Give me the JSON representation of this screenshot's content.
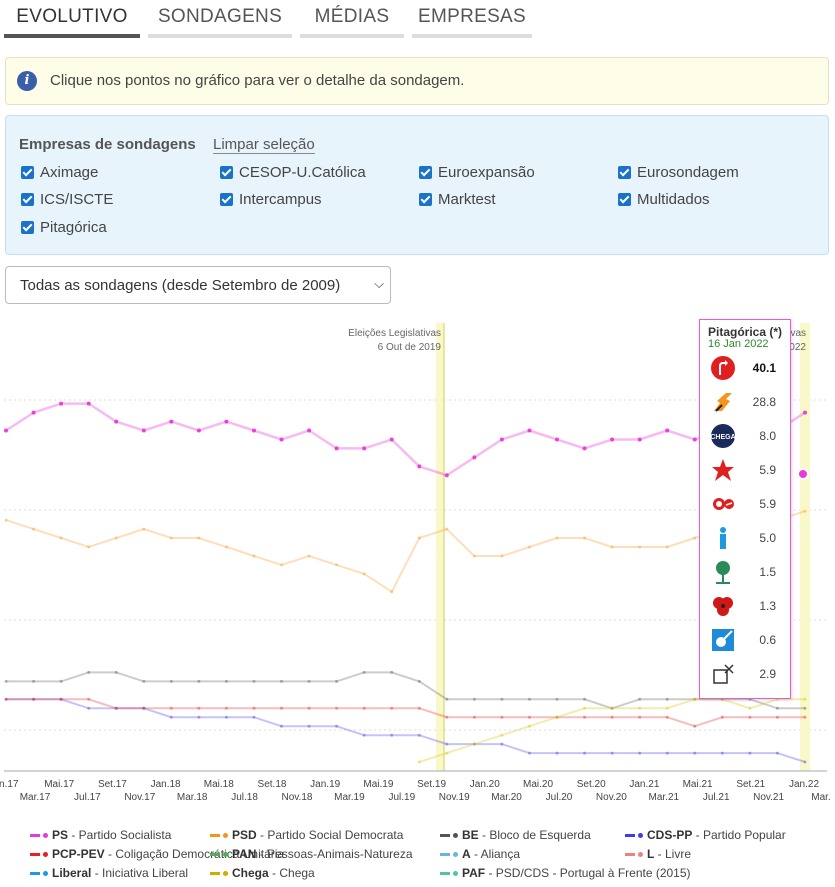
{
  "tabs": [
    "EVOLUTIVO",
    "SONDAGENS",
    "MÉDIAS",
    "EMPRESAS"
  ],
  "info_text": "Clique nos pontos no gráfico para ver o detalhe da sondagem.",
  "firms": {
    "title": "Empresas de sondagens",
    "clear_label": "Limpar seleção",
    "items": [
      "Aximage",
      "CESOP-U.Católica",
      "Euroexpansão",
      "Eurosondagem",
      "ICS/ISCTE",
      "Intercampus",
      "Marktest",
      "Multidados",
      "Pitagórica"
    ]
  },
  "select": {
    "value": "Todas as sondagens (desde Setembro de 2009)"
  },
  "chart_data": {
    "type": "line",
    "annotation": {
      "line1": "Eleições Legislativas",
      "line2": "6 Out de 2019",
      "right_partial": "vas",
      "right_partial_date": "2022"
    },
    "x_top": [
      "an.17",
      "Mai.17",
      "Jul.17",
      "Set.17",
      "Nov.17",
      "Jan.18",
      "Mar.18",
      "Mai.18",
      "Jul.18",
      "Set.18",
      "Nov.18",
      "Jan.19",
      "Mar.19",
      "Mai.19",
      "Jul.19",
      "Set.19",
      "Nov.19",
      "Jan.20",
      "Mar.20",
      "Mai.20",
      "Jul.20",
      "Set.20",
      "Nov.20",
      "Jan.21",
      "Mar.21",
      "Mai.21",
      "Jul.21",
      "Set.21",
      "Nov.21",
      "Jan.22",
      "Mar."
    ],
    "x_bottom": [
      "Mar.17",
      "Jul.17",
      "Nov.17",
      "Mar.18",
      "Jul.18",
      "Nov.18",
      "Mar.19",
      "Jul.19",
      "Nov.19",
      "Mar.20",
      "Jul.20",
      "Nov.20",
      "Mar.21",
      "Jul.21",
      "Nov.21",
      "Mar."
    ],
    "x_top_labels": [
      "an.17",
      "Mai.17",
      "Set.17",
      "Jan.18",
      "Mai.18",
      "Set.18",
      "Jan.19",
      "Mai.19",
      "Set.19",
      "Jan.20",
      "Mai.20",
      "Set.20",
      "Jan.21",
      "Mai.21",
      "Set.21",
      "Jan.22"
    ],
    "x_bottom_labels": [
      "Mar.17",
      "Jul.17",
      "Nov.17",
      "Mar.18",
      "Jul.18",
      "Nov.18",
      "Mar.19",
      "Jul.19",
      "Nov.19",
      "Mar.20",
      "Jul.20",
      "Nov.20",
      "Mar.21",
      "Jul.21",
      "Nov.21",
      "Mar."
    ],
    "series": [
      {
        "name": "PS",
        "color": "#e83ad6",
        "values": [
          38,
          40,
          41,
          41,
          39,
          38,
          39,
          38,
          39,
          38,
          37,
          38,
          36,
          36,
          37,
          34,
          33,
          35,
          37,
          38,
          37,
          36,
          37,
          37,
          38,
          37,
          38,
          37,
          38,
          40
        ]
      },
      {
        "name": "PSD",
        "color": "#f7941d",
        "values": [
          28,
          27,
          26,
          25,
          26,
          27,
          26,
          26,
          25,
          24,
          23,
          24,
          23,
          22,
          20,
          26,
          27,
          24,
          24,
          25,
          26,
          26,
          25,
          25,
          25,
          26,
          27,
          28,
          28,
          29
        ]
      },
      {
        "name": "BE",
        "color": "#555555",
        "values": [
          10,
          10,
          10,
          11,
          11,
          10,
          10,
          10,
          10,
          10,
          10,
          10,
          10,
          11,
          11,
          10,
          8,
          8,
          8,
          8,
          8,
          8,
          7,
          8,
          8,
          8,
          8,
          8,
          7,
          7
        ]
      },
      {
        "name": "CDS-PP",
        "color": "#3b3bf0",
        "values": [
          8,
          8,
          8,
          7,
          7,
          7,
          6,
          6,
          6,
          6,
          5,
          5,
          5,
          4,
          4,
          4,
          3,
          3,
          3,
          2,
          2,
          2,
          2,
          2,
          2,
          2,
          2,
          2,
          2,
          1
        ]
      },
      {
        "name": "PCP-PEV",
        "color": "#e82020",
        "values": [
          8,
          8,
          8,
          8,
          7,
          7,
          7,
          7,
          7,
          7,
          7,
          7,
          7,
          7,
          7,
          7,
          6,
          6,
          6,
          6,
          6,
          6,
          6,
          6,
          6,
          5,
          6,
          6,
          6,
          6
        ]
      },
      {
        "name": "Chega",
        "color": "#d6c000",
        "values": [
          null,
          null,
          null,
          null,
          null,
          null,
          null,
          null,
          null,
          null,
          null,
          null,
          null,
          null,
          null,
          1,
          2,
          3,
          4,
          5,
          6,
          7,
          7,
          7,
          7,
          8,
          8,
          7,
          8,
          8
        ]
      }
    ],
    "tooltip": {
      "firm": "Pitagórica (*)",
      "date": "16 Jan 2022",
      "rows": [
        {
          "party": "PS",
          "value": "40.1"
        },
        {
          "party": "PSD",
          "value": "28.8"
        },
        {
          "party": "Chega",
          "value": "8.0"
        },
        {
          "party": "BE",
          "value": "5.9"
        },
        {
          "party": "PCP-PEV",
          "value": "5.9"
        },
        {
          "party": "Liberal",
          "value": "5.0"
        },
        {
          "party": "PAN",
          "value": "1.5"
        },
        {
          "party": "L",
          "value": "1.3"
        },
        {
          "party": "CDS-PP",
          "value": "0.6"
        },
        {
          "party": "Outros",
          "value": "2.9"
        }
      ]
    }
  },
  "legend": [
    {
      "abbr": "PS",
      "name": "Partido Socialista",
      "color": "#e83ad6"
    },
    {
      "abbr": "PSD",
      "name": "Partido Social Democrata",
      "color": "#f7941d"
    },
    {
      "abbr": "BE",
      "name": "Bloco de Esquerda",
      "color": "#555555"
    },
    {
      "abbr": "CDS-PP",
      "name": "Partido Popular",
      "color": "#3b3bf0"
    },
    {
      "abbr": "PCP-PEV",
      "name": "Coligação Democrática Unitária",
      "color": "#e82020"
    },
    {
      "abbr": "PAN",
      "name": "Pessoas-Animais-Natureza",
      "color": "#4caf50"
    },
    {
      "abbr": "A",
      "name": "Aliança",
      "color": "#62b8e0"
    },
    {
      "abbr": "L",
      "name": "Livre",
      "color": "#f08080"
    },
    {
      "abbr": "Liberal",
      "name": "Iniciativa Liberal",
      "color": "#1e9be0"
    },
    {
      "abbr": "Chega",
      "name": "Chega",
      "color": "#d6a800"
    },
    {
      "abbr": "PAF",
      "name": "PSD/CDS - Portugal à Frente (2015)",
      "color": "#4fc7a4"
    }
  ]
}
